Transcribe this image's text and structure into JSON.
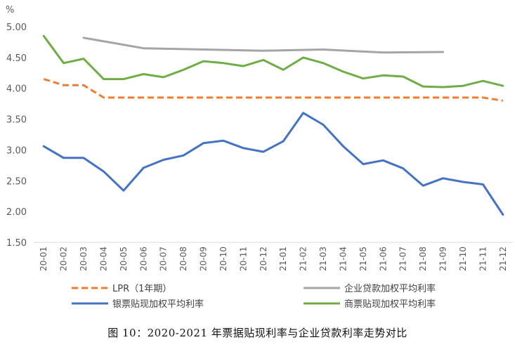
{
  "chart_data": {
    "type": "line",
    "title": "",
    "y_unit": "%",
    "ylim": [
      1.5,
      5.0
    ],
    "y_ticks": [
      "1.50",
      "2.00",
      "2.50",
      "3.00",
      "3.50",
      "4.00",
      "4.50",
      "5.00"
    ],
    "y_tick_values": [
      1.5,
      2.0,
      2.5,
      3.0,
      3.5,
      4.0,
      4.5,
      5.0
    ],
    "grid": false,
    "legend_position": "bottom",
    "categories": [
      "20-01",
      "20-02",
      "20-03",
      "20-04",
      "20-05",
      "20-06",
      "20-07",
      "20-08",
      "20-09",
      "20-10",
      "20-11",
      "20-12",
      "21-01",
      "21-02",
      "21-03",
      "21-04",
      "21-05",
      "21-06",
      "21-07",
      "21-08",
      "21-09",
      "21-10",
      "21-11",
      "21-12"
    ],
    "series": [
      {
        "name": "LPR（1年期）",
        "color": "#ED7D31",
        "dashed": true,
        "values": [
          4.15,
          4.05,
          4.05,
          3.85,
          3.85,
          3.85,
          3.85,
          3.85,
          3.85,
          3.85,
          3.85,
          3.85,
          3.85,
          3.85,
          3.85,
          3.85,
          3.85,
          3.85,
          3.85,
          3.85,
          3.85,
          3.85,
          3.85,
          3.8
        ]
      },
      {
        "name": "企业贷款加权平均利率",
        "color": "#A5A5A5",
        "dashed": false,
        "values": [
          null,
          null,
          4.82,
          null,
          null,
          4.65,
          null,
          null,
          null,
          null,
          null,
          4.61,
          null,
          null,
          4.63,
          null,
          null,
          4.58,
          null,
          null,
          4.59,
          null,
          null,
          null
        ]
      },
      {
        "name": "银票贴现加权平均利率",
        "color": "#4472C4",
        "dashed": false,
        "values": [
          3.06,
          2.87,
          2.87,
          2.65,
          2.34,
          2.71,
          2.84,
          2.91,
          3.11,
          3.15,
          3.03,
          2.97,
          3.14,
          3.6,
          3.41,
          3.06,
          2.77,
          2.83,
          2.7,
          2.42,
          2.54,
          2.48,
          2.44,
          1.95
        ]
      },
      {
        "name": "商票贴现加权平均利率",
        "color": "#70AD47",
        "dashed": false,
        "values": [
          4.85,
          4.41,
          4.48,
          4.15,
          4.15,
          4.23,
          4.18,
          4.3,
          4.44,
          4.41,
          4.36,
          4.46,
          4.3,
          4.5,
          4.41,
          4.27,
          4.16,
          4.21,
          4.19,
          4.03,
          4.02,
          4.04,
          4.12,
          4.04
        ]
      }
    ]
  },
  "caption": "图 10：2020-2021 年票据贴现利率与企业贷款利率走势对比"
}
